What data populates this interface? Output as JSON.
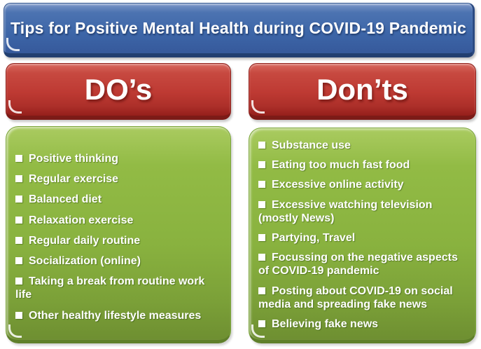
{
  "title": "Tips for Positive Mental Health during COVID-19 Pandemic",
  "dos": {
    "header": "DO’s",
    "items": [
      "Positive thinking",
      "Regular exercise",
      "Balanced diet",
      "Relaxation exercise",
      "Regular daily routine",
      "Socialization (online)",
      "Taking a break from routine work life",
      "Other healthy lifestyle measures"
    ]
  },
  "donts": {
    "header": "Don’ts",
    "items": [
      "Substance use",
      "Eating too much fast food",
      "Excessive online activity",
      "Excessive watching television (mostly News)",
      "Partying, Travel",
      "Focussing on the negative aspects of COVID-19 pandemic",
      "Posting about COVID-19 on social media and spreading fake news",
      "Believing fake news"
    ]
  },
  "colors": {
    "banner_blue": "#3D66A8",
    "header_red": "#BE3A33",
    "panel_green": "#89B23F",
    "text_white": "#FFFFFF"
  }
}
